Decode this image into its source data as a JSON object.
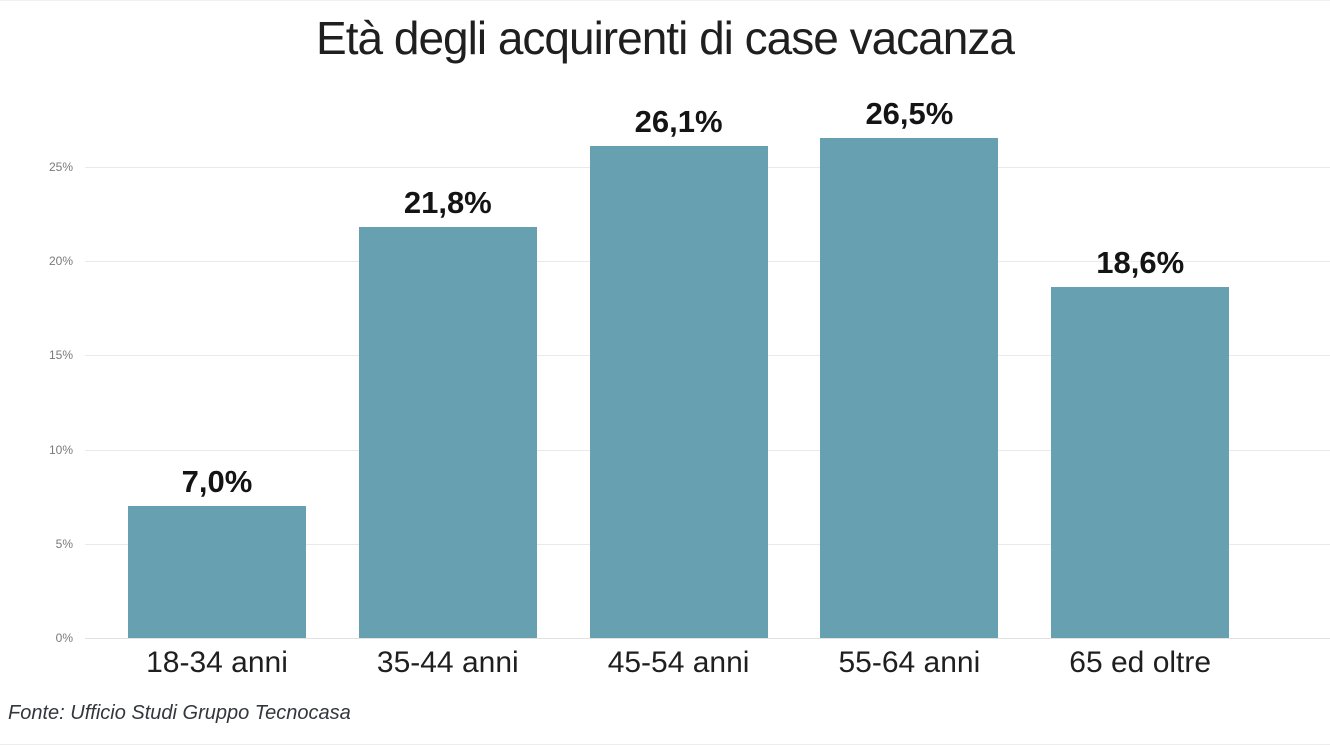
{
  "title": "Età degli acquirenti di case vacanza",
  "source": "Fonte: Ufficio Studi Gruppo Tecnocasa",
  "chart_data": {
    "type": "bar",
    "title": "Età degli acquirenti di case vacanza",
    "categories": [
      "18-34 anni",
      "35-44 anni",
      "45-54 anni",
      "55-64 anni",
      "65 ed oltre"
    ],
    "values": [
      7.0,
      21.8,
      26.1,
      26.5,
      18.6
    ],
    "value_labels": [
      "7,0%",
      "21,8%",
      "26,1%",
      "26,5%",
      "18,6%"
    ],
    "xlabel": "",
    "ylabel": "",
    "ylim": [
      0,
      27.5
    ],
    "yticks": [
      {
        "value": 0,
        "label": "0%"
      },
      {
        "value": 5,
        "label": "5%"
      },
      {
        "value": 10,
        "label": "10%"
      },
      {
        "value": 15,
        "label": "15%"
      },
      {
        "value": 20,
        "label": "20%"
      },
      {
        "value": 25,
        "label": "25%"
      }
    ],
    "grid": true,
    "legend": false,
    "bar_color": "#67a0b0",
    "annotation": "Fonte: Ufficio Studi Gruppo Tecnocasa"
  },
  "colors": {
    "bar": "#67a0b0",
    "title_text": "#1f1f1f",
    "tick_text": "#7a7a7a",
    "gridline": "#e9e9e9"
  }
}
